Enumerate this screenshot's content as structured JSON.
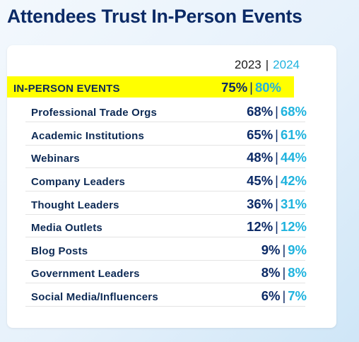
{
  "title": "Attendees Trust In-Person Events",
  "separator": "|",
  "chart_data": {
    "type": "table",
    "columns": [
      "2023",
      "2024"
    ],
    "rows": [
      {
        "label": "IN-PERSON EVENTS",
        "y2023": "75%",
        "y2024": "80%",
        "highlight": true
      },
      {
        "label": "Professional Trade Orgs",
        "y2023": "68%",
        "y2024": "68%"
      },
      {
        "label": "Academic Institutions",
        "y2023": "65%",
        "y2024": "61%"
      },
      {
        "label": "Webinars",
        "y2023": "48%",
        "y2024": "44%"
      },
      {
        "label": "Company Leaders",
        "y2023": "45%",
        "y2024": "42%"
      },
      {
        "label": "Thought Leaders",
        "y2023": "36%",
        "y2024": "31%"
      },
      {
        "label": "Media Outlets",
        "y2023": "12%",
        "y2024": "12%"
      },
      {
        "label": "Blog Posts",
        "y2023": "9%",
        "y2024": "9%"
      },
      {
        "label": "Government Leaders",
        "y2023": "8%",
        "y2024": "8%"
      },
      {
        "label": "Social Media/Influencers",
        "y2023": "6%",
        "y2024": "7%"
      }
    ],
    "highlight_color": "#ffff00",
    "color_2023": "#0b2a66",
    "color_2024": "#1fb3de"
  }
}
